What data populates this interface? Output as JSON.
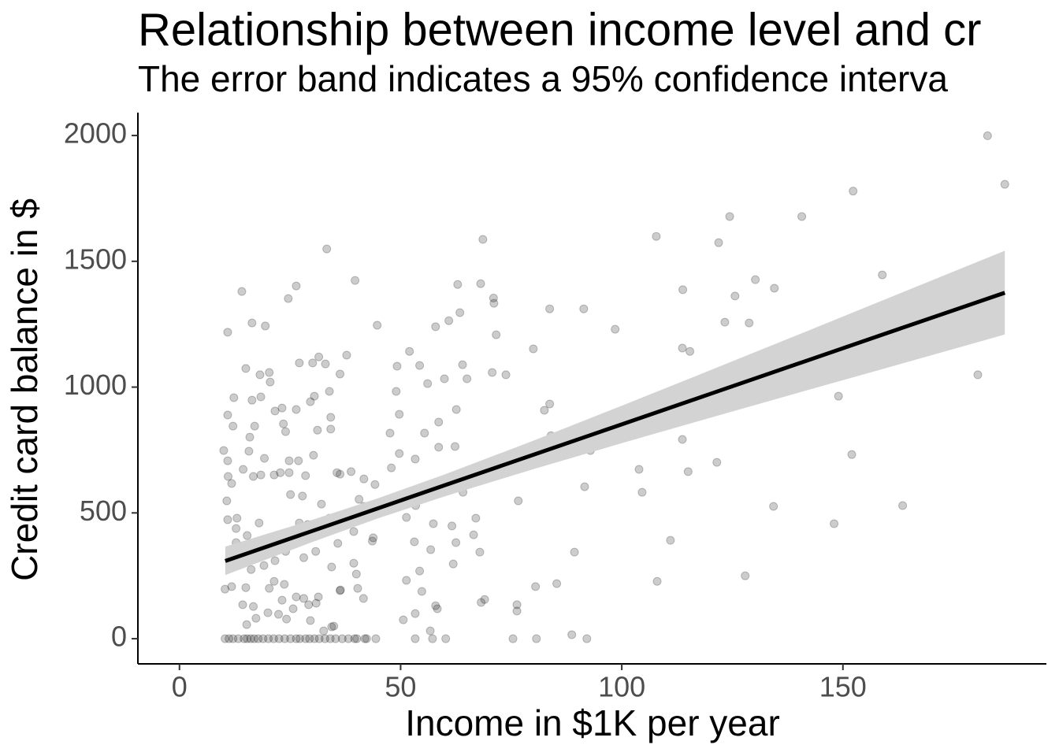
{
  "chart_data": {
    "type": "scatter",
    "title": "Relationship between income level and cr",
    "subtitle": "The error band indicates a 95% confidence interva",
    "x_label": "Income in $1K per year",
    "y_label": "Credit card balance in $",
    "xlim": [
      -9.4,
      196
    ],
    "ylim": [
      -100,
      2091
    ],
    "xticks": [
      0,
      50,
      100,
      150
    ],
    "yticks": [
      0,
      500,
      1000,
      1500,
      2000
    ],
    "color": "#000000",
    "alpha": 0.2,
    "x": [
      182.7,
      186.6,
      152.3,
      124.4,
      140.7,
      107.8,
      121.9,
      68.6,
      33.3,
      158.9,
      130.2,
      134.5,
      39.7,
      113.8,
      180.7,
      125.6,
      26.4,
      62.9,
      68.1,
      14.1,
      71,
      71.1,
      24.6,
      91.4,
      83.7,
      98.5,
      128.8,
      123.3,
      160.3,
      113.7,
      115.4,
      80,
      44.7,
      16.4,
      19.4,
      10.9,
      57.9,
      60.9,
      63.4,
      52,
      71.6,
      146.3,
      149.3,
      149,
      180.5,
      105.6,
      101.7,
      92.3,
      94.1,
      83.7,
      82.5,
      84,
      86.5,
      92.9,
      113.7,
      73.4,
      103.9,
      104.6,
      115,
      121.5,
      152,
      91.6,
      134.3,
      163.5,
      148,
      76.6,
      111,
      89.3,
      127.9,
      108,
      80.5,
      85.3,
      76.3,
      76.3,
      88.7,
      92.1,
      80.7,
      75.4,
      68.2,
      69,
      57.9,
      58.3,
      70.7,
      73.8,
      65,
      59.9,
      56.1,
      49.2,
      54.3,
      64,
      49,
      49.7,
      47.6,
      49.7,
      58.6,
      62.3,
      53.3,
      58.6,
      55.4,
      62.6,
      64.1,
      47.9,
      38.8,
      36.3,
      41.7,
      44.2,
      40.6,
      41.7,
      43.6,
      46,
      40.4,
      53.4,
      51.3,
      57.4,
      61.6,
      62.5,
      66.5,
      67,
      67.9,
      61.9,
      56.8,
      53.1,
      54.3,
      51.3,
      54.8,
      50.6,
      53.3,
      56.7,
      60.2,
      53.3,
      57.2,
      39.4,
      43.8,
      41.6,
      40.3,
      34.4,
      40,
      36.4,
      43.6,
      44.4,
      41.9,
      39.6,
      10.9,
      10.7,
      10,
      11,
      11.8,
      12.1,
      12.3,
      10.9,
      15,
      16.4,
      18.2,
      20.3,
      20.5,
      21.6,
      23.2,
      23.5,
      24,
      27.1,
      30.1,
      31.5,
      33,
      30.5,
      33.9,
      36.3,
      37.8,
      26.4,
      15.9,
      17,
      18.4,
      19.2,
      18.4,
      16.7,
      15.7,
      14.4,
      21.4,
      22.8,
      24.8,
      26.9,
      24.8,
      25.1,
      27.8,
      28.5,
      30.3,
      29.6,
      31.2,
      34.2,
      34.2,
      35.6,
      32.1,
      33.9,
      30.8,
      32.6,
      35.8,
      30.8,
      28.1,
      24,
      21.6,
      20.5,
      18,
      15.3,
      12.8,
      10.9,
      13,
      18,
      27.1,
      29,
      19.1,
      16.2,
      13.9,
      12.8,
      11.8,
      10.3,
      15,
      20.3,
      21.4,
      23.7,
      26.4,
      28.1,
      31.4,
      29.2,
      30.9,
      16.7,
      14.3,
      17.3,
      15.2,
      20,
      22.4,
      24.2,
      25.7,
      23.2,
      29.6,
      32.6,
      34.4,
      34.9,
      36.3,
      39.4,
      10.3,
      11.2,
      12.1,
      13.3,
      14.6,
      15.3,
      16.1,
      16.9,
      17.8,
      18.9,
      20.1,
      21.3,
      22.5,
      23.8,
      25.1,
      26.4,
      27.2,
      28.5,
      29.4,
      30.5,
      31.6,
      32.9,
      34.1,
      35.3,
      36.8,
      38.2,
      40.1,
      42.3
    ],
    "values": [
      1999,
      1806,
      1779,
      1678,
      1678,
      1599,
      1574,
      1587,
      1549,
      1446,
      1427,
      1393,
      1424,
      1387,
      1405,
      1362,
      1402,
      1408,
      1411,
      1380,
      1354,
      1333,
      1352,
      1311,
      1311,
      1230,
      1255,
      1258,
      1192,
      1155,
      1142,
      1152,
      1246,
      1255,
      1243,
      1218,
      1240,
      1264,
      1296,
      1142,
      1208,
      1049,
      1108,
      964,
      1049,
      905,
      848,
      848,
      842,
      933,
      908,
      807,
      767,
      748,
      792,
      723,
      673,
      582,
      664,
      701,
      732,
      604,
      526,
      529,
      457,
      548,
      391,
      344,
      250,
      228,
      207,
      219,
      135,
      110,
      16,
      0,
      0,
      0,
      144,
      156,
      131,
      119,
      1058,
      1049,
      1033,
      1033,
      1014,
      1083,
      1086,
      1089,
      983,
      892,
      817,
      736,
      761,
      764,
      714,
      861,
      817,
      911,
      582,
      679,
      664,
      654,
      635,
      613,
      554,
      526,
      516,
      513,
      510,
      529,
      482,
      457,
      448,
      382,
      413,
      479,
      344,
      297,
      354,
      385,
      269,
      232,
      188,
      75,
      100,
      31,
      0,
      0,
      0,
      426,
      401,
      160,
      200,
      285,
      257,
      194,
      388,
      0,
      0,
      0,
      707,
      548,
      748,
      645,
      617,
      845,
      958,
      889,
      1074,
      948,
      1049,
      1058,
      1020,
      905,
      917,
      854,
      823,
      1096,
      1096,
      1120,
      1092,
      964,
      983,
      1052,
      1127,
      911,
      801,
      845,
      961,
      717,
      651,
      645,
      745,
      673,
      651,
      660,
      707,
      707,
      660,
      573,
      567,
      648,
      729,
      942,
      829,
      880,
      833,
      660,
      535,
      479,
      448,
      420,
      379,
      347,
      322,
      347,
      310,
      385,
      379,
      410,
      438,
      473,
      479,
      460,
      460,
      454,
      291,
      275,
      297,
      382,
      207,
      197,
      203,
      200,
      228,
      216,
      166,
      160,
      166,
      135,
      141,
      128,
      135,
      81,
      56,
      103,
      97,
      78,
      119,
      153,
      72,
      31,
      47,
      50,
      191,
      300,
      0,
      0,
      0,
      0,
      0,
      0,
      0,
      0,
      0,
      0,
      0,
      0,
      0,
      0,
      0,
      0,
      0,
      0,
      0,
      0,
      0,
      0,
      0,
      0,
      0,
      0,
      0,
      0
    ],
    "fit": {
      "x": [
        10.35,
        30,
        45,
        60,
        80,
        100,
        120,
        140,
        160,
        186.6
      ],
      "values": [
        309,
        428,
        519,
        610,
        731,
        852,
        973,
        1094,
        1215,
        1375
      ],
      "lower": [
        253,
        384,
        479,
        566,
        674,
        777,
        878,
        978,
        1077,
        1209
      ],
      "upper": [
        366,
        472,
        559,
        653,
        787,
        926,
        1067,
        1209,
        1352,
        1542
      ],
      "color": "#000000",
      "band_color": "#d3d3d3"
    }
  }
}
